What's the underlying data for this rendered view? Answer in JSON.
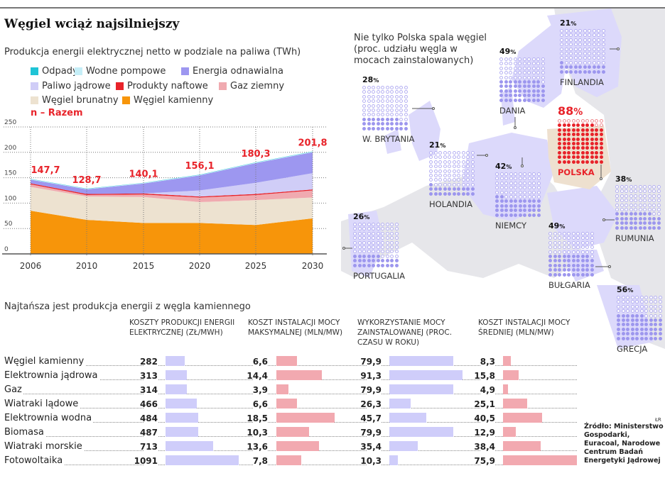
{
  "title": "Węgiel wciąż najsilniejszy",
  "chart1": {
    "subtitle": "Produkcja energii elektrycznej netto w podziale na paliwa (TWh)",
    "total_label": "n – Razem"
  },
  "chart_data": [
    {
      "type": "area",
      "stacked": true,
      "title": "Produkcja energii elektrycznej netto w podziale na paliwa (TWh)",
      "x": [
        "2006",
        "2010",
        "2015",
        "2020",
        "2025",
        "2030"
      ],
      "ylim": [
        0,
        250
      ],
      "yticks": [
        "0",
        "50",
        "100",
        "150",
        "200",
        "250"
      ],
      "grid": true,
      "legend": "top",
      "series": [
        {
          "name": "Węgiel kamienny",
          "color": "#f7950a",
          "values": [
            85,
            67,
            61,
            61,
            57,
            70
          ]
        },
        {
          "name": "Węgiel brunatny",
          "color": "#ede2d0",
          "values": [
            47,
            46,
            51,
            41,
            49,
            41
          ]
        },
        {
          "name": "Gaz ziemny",
          "color": "#f0aab0",
          "values": [
            5,
            3,
            5,
            9,
            10,
            14
          ]
        },
        {
          "name": "Produkty naftowe",
          "color": "#e8232a",
          "values": [
            2,
            2,
            2,
            2,
            2,
            2
          ]
        },
        {
          "name": "Paliwo jądrowe",
          "color": "#d0cdf7",
          "values": [
            0,
            0,
            0,
            12,
            22,
            32
          ]
        },
        {
          "name": "Energia odnawialna",
          "color": "#9d97f0",
          "values": [
            7.2,
            9.2,
            19.6,
            29.6,
            38.8,
            41.3
          ]
        },
        {
          "name": "Wodne pompowe",
          "color": "#c5eef7",
          "values": [
            1,
            1,
            1,
            1,
            1,
            1
          ]
        },
        {
          "name": "Odpady",
          "color": "#1fc4d6",
          "values": [
            0.5,
            0.5,
            0.5,
            0.5,
            0.5,
            0.5
          ]
        }
      ],
      "totals": [
        "147,7",
        "128,7",
        "140,1",
        "156,1",
        "180,3",
        "201,8"
      ],
      "legend_order": [
        "Odpady",
        "Wodne pompowe",
        "Energia odnawialna",
        "Paliwo jądrowe",
        "Produkty naftowe",
        "Gaz ziemny",
        "Węgiel brunatny",
        "Węgiel kamienny"
      ]
    },
    {
      "type": "table",
      "title": "Najtańsza jest produkcja energii z węgla kamiennego",
      "columns": [
        "Koszty produkcji energii elektrycznej (zł/MWh)",
        "Koszt instalacji mocy maksymalnej (mln/MW)",
        "Wykorzystanie mocy zainstalowanej (proc. czasu w roku)",
        "Koszt instalacji mocy średniej (mln/MW)"
      ],
      "column_colors": [
        "#cfcdfa",
        "#f2a9b0",
        "#cfcdfa",
        "#f2a9b0"
      ],
      "rows": [
        {
          "label": "Węgiel kamienny",
          "values": [
            "282",
            "6,6",
            "79,9",
            "8,3"
          ]
        },
        {
          "label": "Elektrownia jądrowa",
          "values": [
            "313",
            "14,4",
            "91,3",
            "15,8"
          ]
        },
        {
          "label": "Gaz",
          "values": [
            "314",
            "3,9",
            "79,9",
            "4,9"
          ]
        },
        {
          "label": "Wiatraki lądowe",
          "values": [
            "466",
            "6,6",
            "26,3",
            "25,1"
          ]
        },
        {
          "label": "Elektrownia wodna",
          "values": [
            "484",
            "18,5",
            "45,7",
            "40,5"
          ]
        },
        {
          "label": "Biomasa",
          "values": [
            "487",
            "10,3",
            "79,9",
            "12,9"
          ]
        },
        {
          "label": "Wiatraki morskie",
          "values": [
            "713",
            "13,6",
            "35,4",
            "38,4"
          ]
        },
        {
          "label": "Fotowoltaika",
          "values": [
            "1091",
            "7,8",
            "10,3",
            "75,9"
          ]
        }
      ]
    },
    {
      "type": "waffle",
      "title": "Nie tylko Polska spala węgiel (proc. udziału węgla w mocach zainstalowanych)",
      "countries": [
        {
          "name": "W. BRYTANIA",
          "value": 28
        },
        {
          "name": "DANIA",
          "value": 49
        },
        {
          "name": "FINLANDIA",
          "value": 21
        },
        {
          "name": "POLSKA",
          "value": 88,
          "highlight": true
        },
        {
          "name": "HOLANDIA",
          "value": 21
        },
        {
          "name": "NIEMCY",
          "value": 42
        },
        {
          "name": "RUMUNIA",
          "value": 38
        },
        {
          "name": "PORTUGALIA",
          "value": 26
        },
        {
          "name": "BUŁGARIA",
          "value": 49
        },
        {
          "name": "GRECJA",
          "value": 56
        }
      ]
    }
  ],
  "map": {
    "title": "Nie tylko Polska spala węgiel (proc. udziału węgla w mocach zainstalowanych)"
  },
  "table": {
    "title": "Najtańsza jest produkcja energii z węgla kamiennego",
    "headers": [
      "KOSZTY PRODUKCJI ENERGII ELEKTRYCZNEJ (ZŁ/MWH)",
      "KOSZT INSTALACJI MOCY MAKSYMALNEJ (MLN/MW)",
      "WYKORZYSTANIE MOCY ZAINSTALOWANEJ (PROC. CZASU W ROKU)",
      "KOSZT INSTALACJI MOCY ŚREDNIEJ (MLN/MW)"
    ]
  },
  "source": "Źródło: Ministerstwo Gospodarki, Euracoal, Narodowe Centrum Badań Energetyki Jądrowej",
  "author": "ŁR"
}
